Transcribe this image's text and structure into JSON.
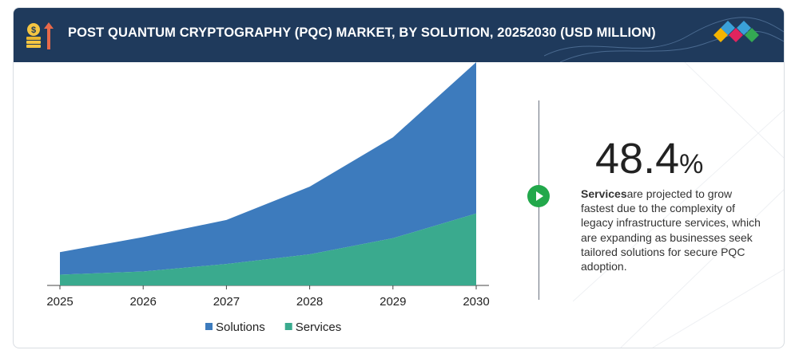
{
  "header": {
    "title": "POST QUANTUM CRYPTOGRAPHY (PQC) MARKET, BY SOLUTION, 20252030 (USD MILLION)",
    "icon": "money-growth-icon",
    "logo": "diamond-logo-mark"
  },
  "chart_data": {
    "type": "area",
    "stacked": true,
    "title": "",
    "xlabel": "",
    "ylabel": "",
    "categories": [
      "2025",
      "2026",
      "2027",
      "2028",
      "2029",
      "2030"
    ],
    "series": [
      {
        "name": "Services",
        "color": "#3aaa8e",
        "values": [
          10,
          13,
          20,
          29,
          44,
          67
        ]
      },
      {
        "name": "Solutions",
        "color": "#3d7bbd",
        "values": [
          21,
          32,
          41,
          63,
          94,
          141
        ]
      }
    ],
    "legend": {
      "position": "bottom",
      "items": [
        "Solutions",
        "Services"
      ]
    },
    "grid": false,
    "ylim": [
      0,
      208
    ]
  },
  "highlight": {
    "value": "48.4",
    "unit": "%",
    "bold_label": "Services",
    "description": "are projected to grow fastest due to the complexity of legacy infrastructure services, which are expanding as businesses seek tailored solutions for secure PQC adoption."
  }
}
